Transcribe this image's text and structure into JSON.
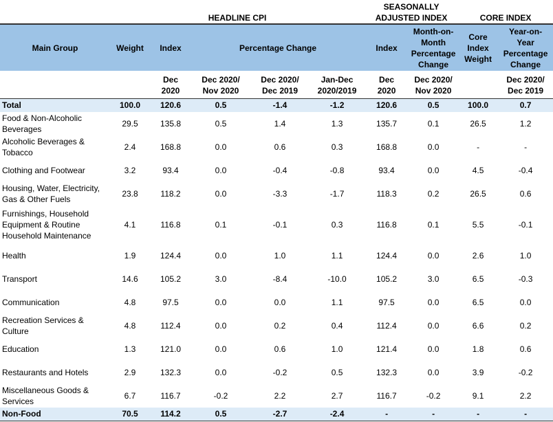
{
  "table": {
    "group_headers": [
      "HEADLINE CPI",
      "SEASONALLY\nADJUSTED INDEX",
      "CORE INDEX"
    ],
    "column_headers": [
      "Main Group",
      "Weight",
      "Index",
      "Percentage Change",
      "Index",
      "Month-on-\nMonth\nPercentage\nChange",
      "Core\nIndex\nWeight",
      "Year-on-\nYear\nPercentage\nChange"
    ],
    "sub_headers": [
      null,
      null,
      "Dec\n2020",
      "Dec 2020/\nNov 2020",
      "Dec 2020/\nDec 2019",
      "Jan-Dec\n2020/2019",
      "Dec\n2020",
      "Dec 2020/\nNov 2020",
      null,
      "Dec 2020/\nDec 2019"
    ],
    "rows": [
      [
        "Total",
        "100.0",
        "120.6",
        "0.5",
        "-1.4",
        "-1.2",
        "120.6",
        "0.5",
        "100.0",
        "0.7"
      ],
      [
        "Food & Non-Alcoholic Beverages",
        "29.5",
        "135.8",
        "0.5",
        "1.4",
        "1.3",
        "135.7",
        "0.1",
        "26.5",
        "1.2"
      ],
      [
        "Alcoholic Beverages & Tobacco",
        "2.4",
        "168.8",
        "0.0",
        "0.6",
        "0.3",
        "168.8",
        "0.0",
        "-",
        "-"
      ],
      [
        "Clothing and Footwear",
        "3.2",
        "93.4",
        "0.0",
        "-0.4",
        "-0.8",
        "93.4",
        "0.0",
        "4.5",
        "-0.4"
      ],
      [
        "Housing, Water, Electricity, Gas & Other Fuels",
        "23.8",
        "118.2",
        "0.0",
        "-3.3",
        "-1.7",
        "118.3",
        "0.2",
        "26.5",
        "0.6"
      ],
      [
        "Furnishings, Household Equipment  & Routine Household Maintenance",
        "4.1",
        "116.8",
        "0.1",
        "-0.1",
        "0.3",
        "116.8",
        "0.1",
        "5.5",
        "-0.1"
      ],
      [
        "Health",
        "1.9",
        "124.4",
        "0.0",
        "1.0",
        "1.1",
        "124.4",
        "0.0",
        "2.6",
        "1.0"
      ],
      [
        "Transport",
        "14.6",
        "105.2",
        "3.0",
        "-8.4",
        "-10.0",
        "105.2",
        "3.0",
        "6.5",
        "-0.3"
      ],
      [
        "Communication",
        "4.8",
        "97.5",
        "0.0",
        "0.0",
        "1.1",
        "97.5",
        "0.0",
        "6.5",
        "0.0"
      ],
      [
        "Recreation Services & Culture",
        "4.8",
        "112.4",
        "0.0",
        "0.2",
        "0.4",
        "112.4",
        "0.0",
        "6.6",
        "0.2"
      ],
      [
        "Education",
        "1.3",
        "121.0",
        "0.0",
        "0.6",
        "1.0",
        "121.4",
        "0.0",
        "1.8",
        "0.6"
      ],
      [
        "Restaurants and Hotels",
        "2.9",
        "132.3",
        "0.0",
        "-0.2",
        "0.5",
        "132.3",
        "0.0",
        "3.9",
        "-0.2"
      ],
      [
        "Miscellaneous Goods & Services",
        "6.7",
        "116.7",
        "-0.2",
        "2.2",
        "2.7",
        "116.7",
        "-0.2",
        "9.1",
        "2.2"
      ],
      [
        "Non-Food",
        "70.5",
        "114.2",
        "0.5",
        "-2.7",
        "-2.4",
        "-",
        "-",
        "-",
        "-"
      ]
    ]
  }
}
